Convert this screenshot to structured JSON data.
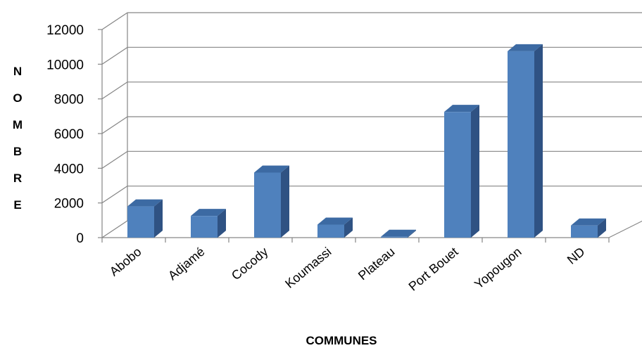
{
  "chart_data": {
    "type": "bar",
    "categories": [
      "Abobo",
      "Adjamé",
      "Cocody",
      "Koumassi",
      "Plateau",
      "Port Bouet",
      "Yopougon",
      "ND"
    ],
    "values": [
      1800,
      1250,
      3750,
      750,
      50,
      7250,
      10750,
      700
    ],
    "xlabel": "COMMUNES",
    "ylabel": "NOMBRE",
    "ylim": [
      0,
      12000
    ],
    "yticks": [
      0,
      2000,
      4000,
      6000,
      8000,
      10000,
      12000
    ],
    "grid": true,
    "legend": "none",
    "colors": {
      "bar_front": "#4f81bd",
      "bar_side": "#2f5283",
      "bar_top": "#3c6aa3",
      "grid": "#868686"
    }
  }
}
